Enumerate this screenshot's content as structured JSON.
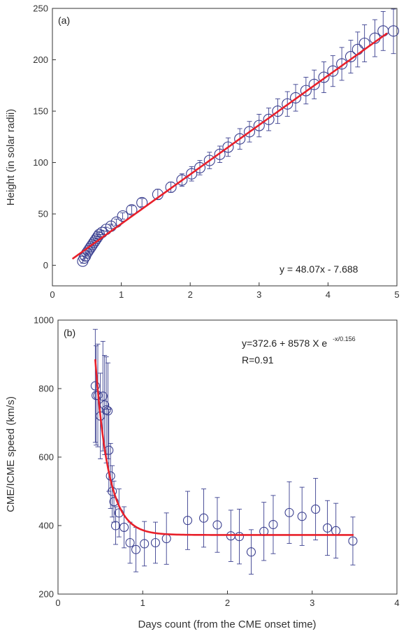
{
  "chart_data": [
    {
      "type": "scatter",
      "panel_label": "(a)",
      "ylabel": "Height (in solar radii)",
      "xlim": [
        0,
        5
      ],
      "ylim": [
        -20,
        250
      ],
      "xticks": [
        "0",
        "1",
        "2",
        "3",
        "4",
        "5"
      ],
      "yticks": [
        "0",
        "50",
        "100",
        "150",
        "200",
        "250"
      ],
      "grid": false,
      "fit_equation": "y = 48.07x - 7.688",
      "fit": {
        "kind": "linear",
        "slope": 48.07,
        "intercept": -7.688,
        "x_range": [
          0.3,
          4.85
        ]
      },
      "colors": {
        "points": "#3a3f8f",
        "fit": "#e8202a"
      },
      "x": [
        0.44,
        0.46,
        0.48,
        0.5,
        0.52,
        0.54,
        0.56,
        0.58,
        0.6,
        0.62,
        0.64,
        0.66,
        0.68,
        0.72,
        0.78,
        0.85,
        0.93,
        1.02,
        1.15,
        1.3,
        1.53,
        1.72,
        1.88,
        2.02,
        2.14,
        2.28,
        2.43,
        2.55,
        2.72,
        2.86,
        3.0,
        3.14,
        3.27,
        3.41,
        3.53,
        3.68,
        3.8,
        3.94,
        4.07,
        4.2,
        4.33,
        4.43,
        4.53,
        4.68,
        4.8,
        4.95
      ],
      "y": [
        4,
        7,
        9,
        12,
        14,
        16,
        18,
        20,
        22,
        24,
        26,
        28,
        30,
        32,
        35,
        38,
        42,
        48,
        54,
        61,
        69,
        76,
        83,
        89,
        95,
        102,
        108,
        115,
        123,
        130,
        136,
        142,
        150,
        157,
        163,
        170,
        176,
        183,
        189,
        196,
        203,
        210,
        216,
        221,
        228,
        228
      ],
      "yerr": [
        2,
        2,
        2,
        2,
        2,
        2,
        2,
        2,
        2,
        2,
        2,
        2,
        2,
        2,
        2,
        2,
        3,
        3,
        4,
        4,
        5,
        5,
        6,
        7,
        7,
        8,
        8,
        9,
        10,
        10,
        11,
        11,
        12,
        12,
        13,
        13,
        14,
        15,
        15,
        16,
        16,
        17,
        18,
        18,
        19,
        22
      ]
    },
    {
      "type": "scatter",
      "panel_label": "(b)",
      "xlabel": "Days count (from the CME onset time)",
      "ylabel": "CME/ICME speed (km/s)",
      "xlim": [
        0,
        4
      ],
      "ylim": [
        200,
        1000
      ],
      "xticks": [
        "0",
        "1",
        "2",
        "3",
        "4"
      ],
      "yticks": [
        "200",
        "400",
        "600",
        "800",
        "1000"
      ],
      "grid": false,
      "fit_equation_base": "y=372.6 + 8578 X e",
      "fit_equation_exponent": "-x/0.156",
      "r_text": "R=0.91",
      "fit": {
        "kind": "exp_decay",
        "a": 372.6,
        "b": 8578,
        "tau": 0.156,
        "x_range": [
          0.44,
          3.48
        ]
      },
      "colors": {
        "points": "#3a3f8f",
        "fit": "#e8202a"
      },
      "x": [
        0.44,
        0.45,
        0.47,
        0.5,
        0.53,
        0.55,
        0.57,
        0.59,
        0.6,
        0.62,
        0.64,
        0.66,
        0.68,
        0.72,
        0.78,
        0.85,
        0.92,
        1.02,
        1.15,
        1.28,
        1.53,
        1.72,
        1.88,
        2.04,
        2.14,
        2.28,
        2.43,
        2.54,
        2.73,
        2.88,
        3.04,
        3.18,
        3.28,
        3.48
      ],
      "y": [
        808,
        780,
        780,
        720,
        778,
        752,
        738,
        735,
        620,
        545,
        500,
        470,
        400,
        437,
        395,
        350,
        330,
        347,
        350,
        362,
        415,
        422,
        402,
        370,
        368,
        323,
        383,
        403,
        438,
        427,
        448,
        393,
        385,
        355
      ],
      "yerr": [
        165,
        145,
        150,
        125,
        160,
        145,
        155,
        140,
        120,
        95,
        75,
        60,
        55,
        70,
        60,
        60,
        65,
        65,
        60,
        75,
        85,
        85,
        80,
        75,
        80,
        65,
        85,
        85,
        90,
        85,
        90,
        80,
        80,
        70
      ]
    }
  ]
}
